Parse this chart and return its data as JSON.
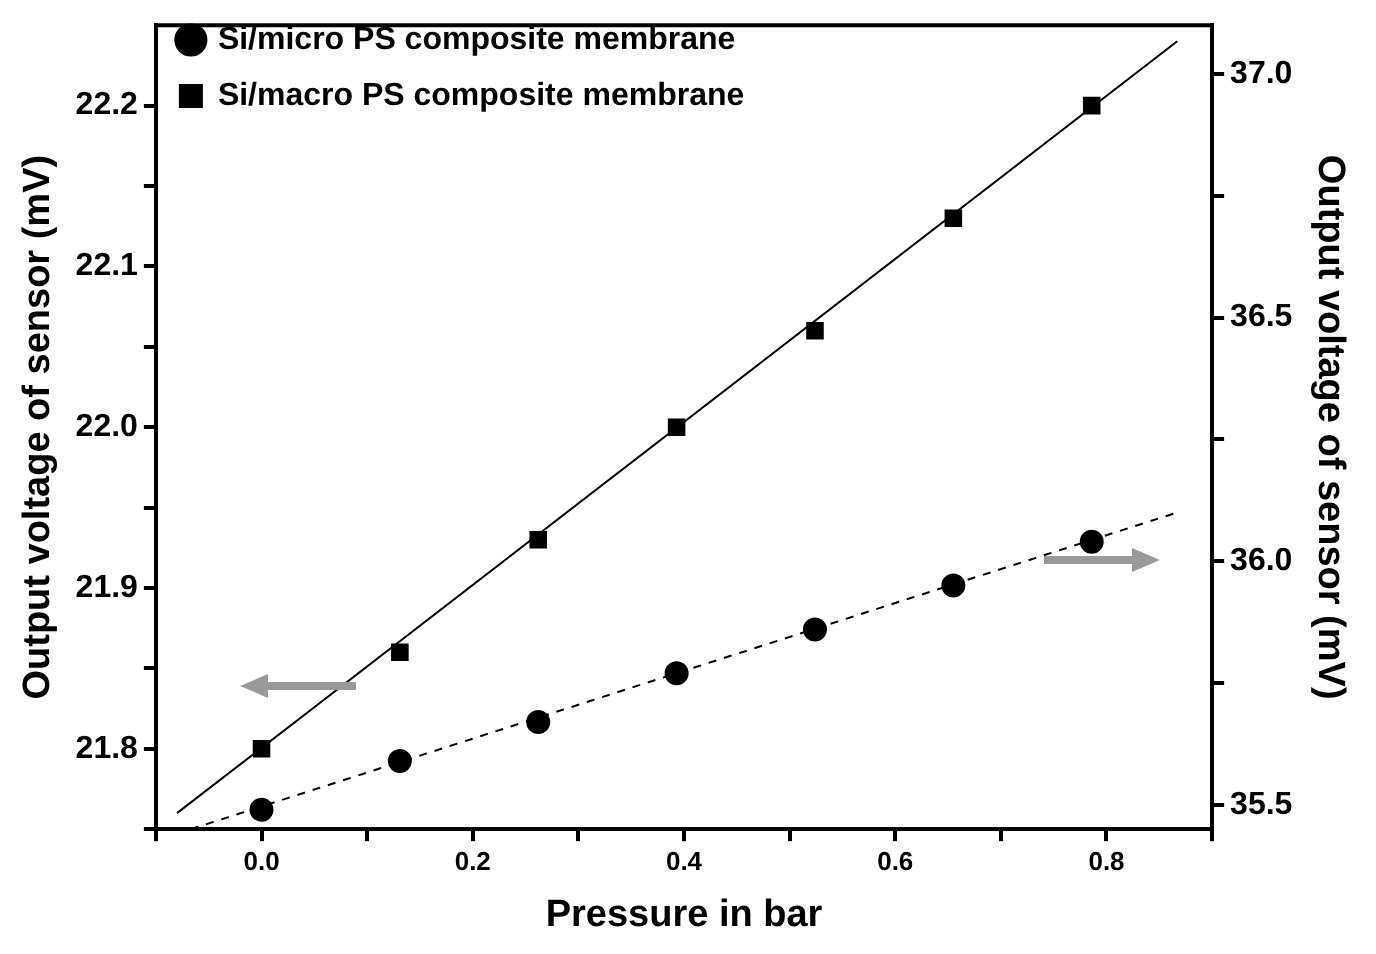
{
  "chart_data": {
    "type": "scatter",
    "xlabel": "Pressure in bar",
    "ylabel": "Output voltage of sensor (mV)",
    "y2label": "Output voltage of sensor (mV)",
    "xlim": [
      -0.1,
      0.9
    ],
    "xticks": [
      {
        "value": -0.1,
        "label": null
      },
      {
        "value": 0,
        "label": "0.0"
      },
      {
        "value": 0.1,
        "label": null
      },
      0.2,
      {
        "value": 0.3,
        "label": null
      },
      0.4,
      {
        "value": 0.5,
        "label": null
      },
      0.6,
      {
        "value": 0.7,
        "label": null
      },
      0.8,
      {
        "value": 0.9,
        "label": null
      }
    ],
    "ylim": [
      21.75,
      22.25
    ],
    "yticks": [
      {
        "value": 21.75,
        "label": null
      },
      21.8,
      {
        "value": 21.85,
        "label": null
      },
      21.9,
      {
        "value": 21.95,
        "label": null
      },
      {
        "value": 22,
        "label": "22.0"
      },
      {
        "value": 22.05,
        "label": null
      },
      22.1,
      {
        "value": 22.15,
        "label": null
      },
      22.2
    ],
    "y2lim": [
      35.45,
      37.1
    ],
    "y2ticks": [
      35.5,
      {
        "value": 35.75,
        "label": null
      },
      {
        "value": 36,
        "label": "36.0"
      },
      {
        "value": 36.25,
        "label": null
      },
      36.5,
      {
        "value": 36.75,
        "label": null
      },
      {
        "value": 37,
        "label": "37.0"
      }
    ],
    "x": [
      0.0,
      0.131,
      0.262,
      0.393,
      0.524,
      0.655,
      0.786
    ],
    "series": [
      {
        "name": "Si/micro PS composite membrane",
        "type": "scatter",
        "axis": "y2",
        "color": "#000000",
        "marker": "circle",
        "values": [
          35.49,
          35.59,
          35.67,
          35.77,
          35.86,
          35.95,
          36.04
        ]
      },
      {
        "name": "Si/macro PS composite membrane",
        "type": "scatter",
        "color": "#000000",
        "marker": "square",
        "values": [
          21.8,
          21.86,
          21.93,
          22.0,
          22.06,
          22.13,
          22.2
        ]
      },
      {
        "type": "line",
        "axis": "y2",
        "color": "#000000",
        "marker": "none",
        "line_style": "dashed",
        "x": [
          -0.067,
          0.867
        ],
        "values": [
          35.45,
          36.1
        ]
      },
      {
        "type": "line",
        "color": "#000000",
        "marker": "none",
        "line_style": "solid",
        "x": [
          -0.08,
          0.867
        ],
        "values": [
          21.76,
          22.24
        ]
      }
    ],
    "grid": false,
    "legend": "top left"
  }
}
